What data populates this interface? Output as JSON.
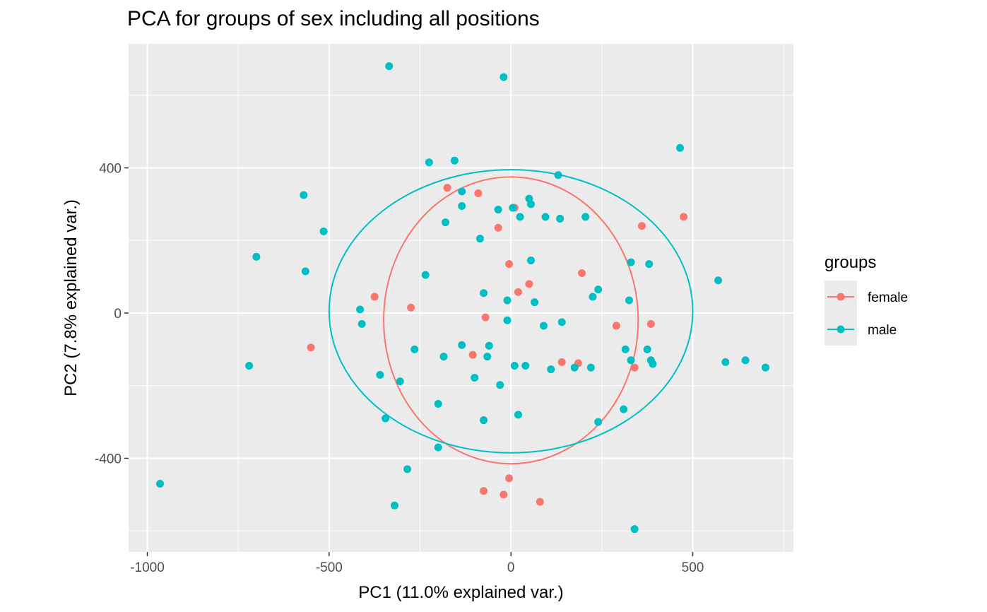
{
  "chart_data": {
    "type": "scatter",
    "title": "PCA for groups of sex including all positions",
    "xlabel": "PC1 (11.0% explained var.)",
    "ylabel": "PC2 (7.8% explained var.)",
    "xlim": [
      -1050,
      780
    ],
    "ylim": [
      -655,
      735
    ],
    "xticks": [
      -1000,
      -500,
      0,
      500
    ],
    "xtick_labels": [
      "-1000",
      "-500",
      "0",
      "500"
    ],
    "yticks": [
      -400,
      0,
      400
    ],
    "ytick_labels": [
      "-400",
      "0",
      "400"
    ],
    "grid": true,
    "legend": {
      "title": "groups",
      "position": "right"
    },
    "series": [
      {
        "name": "female",
        "color": "#F8766D",
        "ellipse": {
          "center": [
            0,
            -20
          ],
          "radius": [
            350,
            395
          ]
        },
        "points": [
          [
            -175,
            345
          ],
          [
            -90,
            330
          ],
          [
            10,
            290
          ],
          [
            -35,
            235
          ],
          [
            360,
            240
          ],
          [
            475,
            265
          ],
          [
            -5,
            135
          ],
          [
            195,
            110
          ],
          [
            50,
            80
          ],
          [
            20,
            58
          ],
          [
            -375,
            45
          ],
          [
            -275,
            15
          ],
          [
            -70,
            -12
          ],
          [
            290,
            -35
          ],
          [
            385,
            -30
          ],
          [
            -550,
            -95
          ],
          [
            -105,
            -115
          ],
          [
            140,
            -135
          ],
          [
            185,
            -138
          ],
          [
            340,
            -150
          ],
          [
            -5,
            -455
          ],
          [
            -75,
            -490
          ],
          [
            -20,
            -500
          ],
          [
            80,
            -520
          ]
        ]
      },
      {
        "name": "male",
        "color": "#00BFC4",
        "ellipse": {
          "center": [
            0,
            5
          ],
          "radius": [
            500,
            390
          ]
        },
        "points": [
          [
            -335,
            680
          ],
          [
            -20,
            650
          ],
          [
            465,
            455
          ],
          [
            -225,
            415
          ],
          [
            -155,
            420
          ],
          [
            130,
            380
          ],
          [
            -570,
            325
          ],
          [
            -135,
            335
          ],
          [
            50,
            315
          ],
          [
            -35,
            285
          ],
          [
            5,
            290
          ],
          [
            55,
            300
          ],
          [
            -135,
            295
          ],
          [
            -180,
            250
          ],
          [
            25,
            265
          ],
          [
            95,
            265
          ],
          [
            135,
            260
          ],
          [
            205,
            265
          ],
          [
            -515,
            225
          ],
          [
            -85,
            205
          ],
          [
            -700,
            155
          ],
          [
            55,
            145
          ],
          [
            330,
            140
          ],
          [
            380,
            135
          ],
          [
            -565,
            115
          ],
          [
            -235,
            105
          ],
          [
            570,
            90
          ],
          [
            240,
            65
          ],
          [
            -75,
            55
          ],
          [
            225,
            45
          ],
          [
            325,
            35
          ],
          [
            -10,
            35
          ],
          [
            65,
            30
          ],
          [
            -415,
            10
          ],
          [
            140,
            -25
          ],
          [
            90,
            -35
          ],
          [
            -410,
            -30
          ],
          [
            -10,
            -20
          ],
          [
            -60,
            -90
          ],
          [
            -135,
            -88
          ],
          [
            -265,
            -100
          ],
          [
            315,
            -100
          ],
          [
            375,
            -100
          ],
          [
            -185,
            -120
          ],
          [
            -65,
            -120
          ],
          [
            385,
            -130
          ],
          [
            330,
            -130
          ],
          [
            590,
            -135
          ],
          [
            645,
            -130
          ],
          [
            10,
            -145
          ],
          [
            40,
            -145
          ],
          [
            700,
            -150
          ],
          [
            110,
            -155
          ],
          [
            175,
            -150
          ],
          [
            220,
            -150
          ],
          [
            390,
            -140
          ],
          [
            -720,
            -145
          ],
          [
            -360,
            -170
          ],
          [
            -100,
            -178
          ],
          [
            -305,
            -188
          ],
          [
            -30,
            -198
          ],
          [
            -200,
            -250
          ],
          [
            310,
            -265
          ],
          [
            20,
            -280
          ],
          [
            -345,
            -290
          ],
          [
            -75,
            -295
          ],
          [
            240,
            -300
          ],
          [
            -200,
            -370
          ],
          [
            -285,
            -430
          ],
          [
            -965,
            -470
          ],
          [
            -320,
            -530
          ],
          [
            340,
            -595
          ]
        ]
      }
    ]
  }
}
